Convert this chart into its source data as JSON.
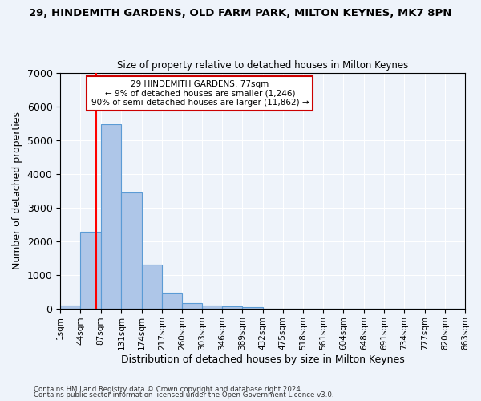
{
  "title": "29, HINDEMITH GARDENS, OLD FARM PARK, MILTON KEYNES, MK7 8PN",
  "subtitle": "Size of property relative to detached houses in Milton Keynes",
  "xlabel": "Distribution of detached houses by size in Milton Keynes",
  "ylabel": "Number of detached properties",
  "footnote1": "Contains HM Land Registry data © Crown copyright and database right 2024.",
  "footnote2": "Contains public sector information licensed under the Open Government Licence v3.0.",
  "annotation_line1": "29 HINDEMITH GARDENS: 77sqm",
  "annotation_line2": "← 9% of detached houses are smaller (1,246)",
  "annotation_line3": "90% of semi-detached houses are larger (11,862) →",
  "bar_color": "#aec6e8",
  "bar_edge_color": "#5b9bd5",
  "red_line_x": 77,
  "ylim": [
    0,
    7000
  ],
  "bin_edges": [
    1,
    44,
    87,
    131,
    174,
    217,
    260,
    303,
    346,
    389,
    432,
    475,
    518,
    561,
    604,
    648,
    691,
    734,
    777,
    820,
    863
  ],
  "bar_heights": [
    75,
    2270,
    5480,
    3440,
    1310,
    460,
    160,
    90,
    60,
    40,
    0,
    0,
    0,
    0,
    0,
    0,
    0,
    0,
    0,
    0
  ],
  "tick_labels": [
    "1sqm",
    "44sqm",
    "87sqm",
    "131sqm",
    "174sqm",
    "217sqm",
    "260sqm",
    "303sqm",
    "346sqm",
    "389sqm",
    "432sqm",
    "475sqm",
    "518sqm",
    "561sqm",
    "604sqm",
    "648sqm",
    "691sqm",
    "734sqm",
    "777sqm",
    "820sqm",
    "863sqm"
  ],
  "bg_color": "#eef3fa",
  "grid_color": "#ffffff",
  "annotation_box_color": "#ffffff",
  "annotation_box_edge": "#cc0000"
}
